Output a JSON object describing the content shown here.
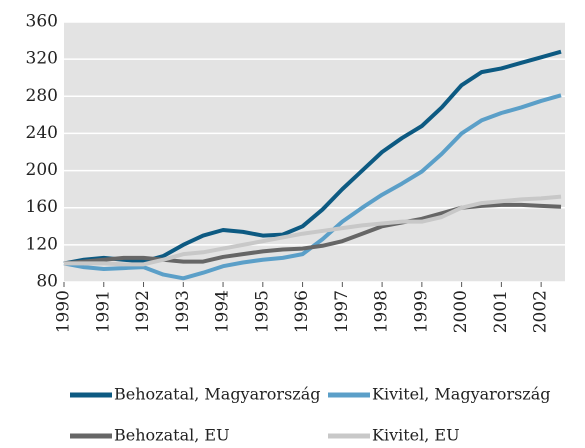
{
  "chart_data": {
    "type": "line",
    "x": [
      1990,
      1990.5,
      1991,
      1991.5,
      1992,
      1992.5,
      1993,
      1993.5,
      1994,
      1994.5,
      1995,
      1995.5,
      1996,
      1996.5,
      1997,
      1997.5,
      1998,
      1998.5,
      1999,
      1999.5,
      2000,
      2000.5,
      2001,
      2001.5,
      2002,
      2002.5
    ],
    "series": [
      {
        "name": "Behozatal, Magyarország",
        "color": "#0d5a82",
        "values": [
          100,
          104,
          106,
          104,
          102,
          108,
          120,
          130,
          136,
          134,
          130,
          131,
          140,
          158,
          180,
          200,
          220,
          235,
          248,
          268,
          292,
          306,
          310,
          316,
          322,
          328
        ]
      },
      {
        "name": "Kivitel, Magyarország",
        "color": "#5b9fc8",
        "values": [
          100,
          96,
          94,
          95,
          96,
          88,
          84,
          90,
          97,
          101,
          104,
          106,
          110,
          126,
          145,
          160,
          174,
          186,
          199,
          218,
          240,
          254,
          262,
          268,
          275,
          281
        ]
      },
      {
        "name": "Behozatal, EU",
        "color": "#666666",
        "values": [
          100,
          102,
          104,
          106,
          106,
          104,
          102,
          102,
          107,
          110,
          113,
          115,
          116,
          119,
          124,
          132,
          140,
          144,
          148,
          154,
          160,
          162,
          163,
          163,
          162,
          161
        ]
      },
      {
        "name": "Kivitel, EU",
        "color": "#c8c8c8",
        "values": [
          100,
          100,
          100,
          99,
          99,
          104,
          110,
          112,
          116,
          120,
          124,
          128,
          132,
          135,
          138,
          141,
          143,
          145,
          145,
          150,
          160,
          165,
          167,
          169,
          170,
          172
        ]
      }
    ],
    "xlim": [
      1990,
      2002.6
    ],
    "xticks": [
      1990,
      1991,
      1992,
      1993,
      1994,
      1995,
      1996,
      1997,
      1998,
      1999,
      2000,
      2001,
      2002
    ],
    "ylim": [
      80,
      360
    ],
    "yticks": [
      80,
      120,
      160,
      200,
      240,
      280,
      320,
      360
    ],
    "grid": true,
    "plot_background": "#e3e3e3"
  }
}
